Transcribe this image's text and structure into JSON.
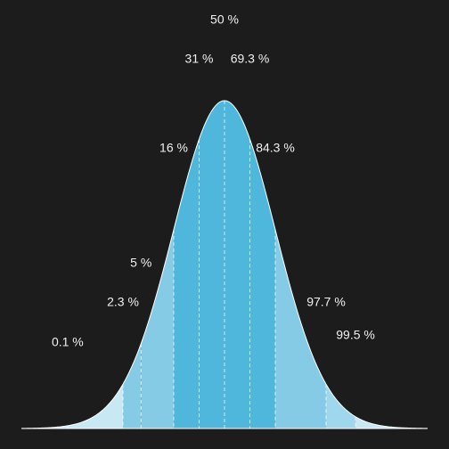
{
  "chart_data": {
    "type": "normal-percentiles",
    "xlim": [
      -4,
      4
    ],
    "markers": [
      {
        "z": -3.09,
        "value": 0.1,
        "label": "0.1 %"
      },
      {
        "z": -2,
        "value": 2.3,
        "label": "2.3 %"
      },
      {
        "z": -1.645,
        "value": 5,
        "label": "5 %"
      },
      {
        "z": -1,
        "value": 16,
        "label": "16 %"
      },
      {
        "z": -0.5,
        "value": 31,
        "label": "31 %"
      },
      {
        "z": 0,
        "value": 50,
        "label": "50 %"
      },
      {
        "z": 0.5,
        "value": 69.3,
        "label": "69.3 %"
      },
      {
        "z": 1,
        "value": 84.3,
        "label": "84.3 %"
      },
      {
        "z": 2,
        "value": 97.7,
        "label": "97.7 %"
      },
      {
        "z": 2.58,
        "value": 99.5,
        "label": "99.5 %"
      }
    ],
    "band_colors": [
      "#c8e9f4",
      "#9fd8ed",
      "#86cbe5",
      "#4fb6dc"
    ],
    "curve_color": "#ffffff"
  }
}
